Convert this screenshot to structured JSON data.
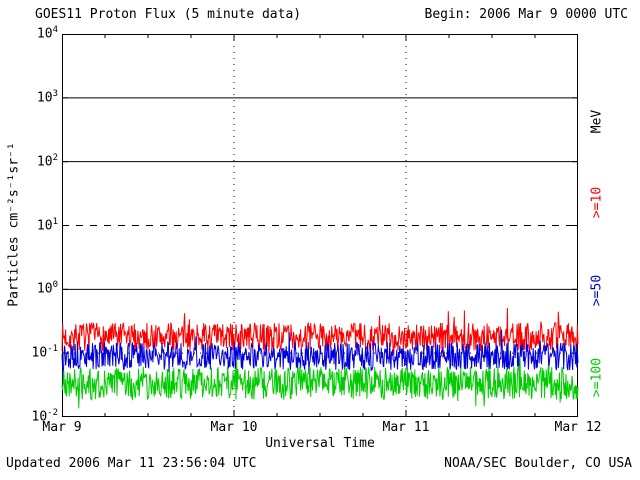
{
  "header": {
    "title": "GOES11 Proton Flux (5 minute data)",
    "begin_label": "Begin: 2006 Mar 9 0000 UTC"
  },
  "footer": {
    "updated": "Updated 2006 Mar 11 23:56:04 UTC",
    "source": "NOAA/SEC Boulder, CO USA"
  },
  "chart_data": {
    "type": "line",
    "title": "GOES11 Proton Flux (5 minute data)",
    "xlabel": "Universal Time",
    "ylabel": "Particles cm⁻²s⁻¹sr⁻¹",
    "right_axis_label": "MeV",
    "x_ticks": [
      "Mar 9",
      "Mar 10",
      "Mar 11",
      "Mar 12"
    ],
    "x_range_days": 3,
    "points_per_day": 288,
    "y_exponent_ticks": [
      4,
      3,
      2,
      1,
      0,
      -1,
      -2
    ],
    "ylim": [
      0.01,
      10000
    ],
    "grid": {
      "solid_y_exponents": [
        3,
        2,
        0
      ],
      "dashed_y_exponents": [
        1
      ],
      "dotted_y_exponents": [
        -1
      ],
      "vertical_dotted_days": [
        1,
        2
      ]
    },
    "series": [
      {
        "name": ">=10",
        "color": "#ff0000",
        "baseline_flux": 0.18,
        "noise_decades": 0.22,
        "spike_prob": 0.05,
        "seed": 7
      },
      {
        "name": ">=50",
        "color": "#0000dd",
        "baseline_flux": 0.09,
        "noise_decades": 0.22,
        "spike_prob": 0.03,
        "seed": 13
      },
      {
        "name": ">=100",
        "color": "#00cc00",
        "baseline_flux": 0.034,
        "noise_decades": 0.26,
        "spike_prob": 0.03,
        "seed": 21
      }
    ],
    "legend_position": "right"
  }
}
